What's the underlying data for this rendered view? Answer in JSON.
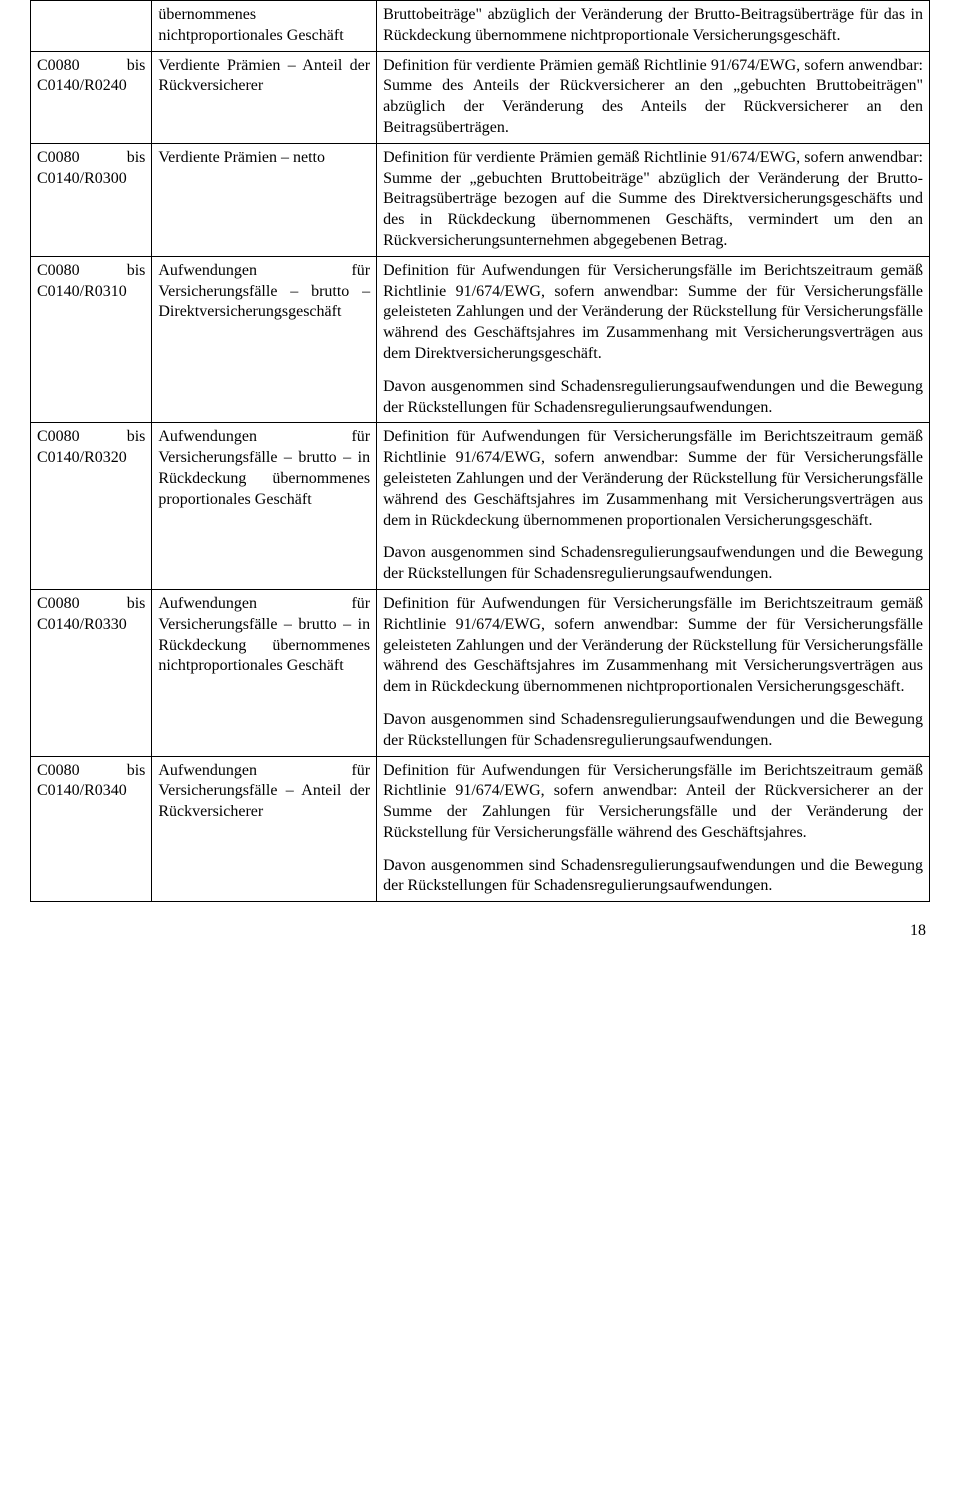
{
  "rows": [
    {
      "col1": "",
      "col2": "übernommenes nichtproportionales Geschäft",
      "col3": [
        "Bruttobeiträge\" abzüglich der Veränderung der Brutto-Beitragsüberträge für das in Rückdeckung übernommene nichtproportionale Versicherungsgeschäft."
      ]
    },
    {
      "col1": "C0080 bis C0140/R0240",
      "col2": "Verdiente Prämien – Anteil der Rückversicherer",
      "col3": [
        "Definition für verdiente Prämien gemäß Richtlinie 91/674/EWG, sofern anwendbar: Summe des Anteils der Rückversicherer an den „gebuchten Bruttobeiträgen\" abzüglich der Veränderung des Anteils der Rückversicherer an den Beitragsüberträgen."
      ]
    },
    {
      "col1": "C0080 bis C0140/R0300",
      "col2": "Verdiente Prämien – netto",
      "col3": [
        "Definition für verdiente Prämien gemäß Richtlinie 91/674/EWG, sofern anwendbar: Summe der „gebuchten Bruttobeiträge\" abzüglich der Veränderung der Brutto-Beitragsüberträge bezogen auf die Summe des Direktversicherungsgeschäfts und des in Rückdeckung übernommenen Geschäfts, vermindert um den an Rückversicherungsunternehmen abgegebenen Betrag."
      ]
    },
    {
      "col1": "C0080 bis C0140/R0310",
      "col2": "Aufwendungen für Versicherungsfälle – brutto – Direktversicherungsgeschäft",
      "col3": [
        "Definition für Aufwendungen für Versicherungsfälle im Berichtszeitraum gemäß Richtlinie 91/674/EWG, sofern anwendbar: Summe der für Versicherungsfälle geleisteten Zahlungen und der Veränderung der Rückstellung für Versicherungsfälle während des Geschäftsjahres im Zusammenhang mit Versicherungsverträgen aus dem Direktversicherungsgeschäft.",
        "Davon ausgenommen sind Schadensregulierungsaufwendungen und die Bewegung der Rückstellungen für Schadensregulierungsaufwendungen."
      ]
    },
    {
      "col1": "C0080 bis C0140/R0320",
      "col2": "Aufwendungen für Versicherungsfälle – brutto – in Rückdeckung übernommenes proportionales Geschäft",
      "col3": [
        "Definition für Aufwendungen für Versicherungsfälle im Berichtszeitraum gemäß Richtlinie 91/674/EWG, sofern anwendbar: Summe der für Versicherungsfälle geleisteten Zahlungen und der Veränderung der Rückstellung für Versicherungsfälle während des Geschäftsjahres im Zusammenhang mit Versicherungsverträgen aus dem in Rückdeckung übernommenen proportionalen Versicherungsgeschäft.",
        "Davon ausgenommen sind Schadensregulierungsaufwendungen und die Bewegung der Rückstellungen für Schadensregulierungsaufwendungen."
      ]
    },
    {
      "col1": "C0080 bis C0140/R0330",
      "col2": "Aufwendungen für Versicherungsfälle – brutto – in Rückdeckung übernommenes nichtproportionales Geschäft",
      "col3": [
        "Definition für Aufwendungen für Versicherungsfälle im Berichtszeitraum gemäß Richtlinie 91/674/EWG, sofern anwendbar: Summe der für Versicherungsfälle geleisteten Zahlungen und der Veränderung der Rückstellung für Versicherungsfälle während des Geschäftsjahres im Zusammenhang mit Versicherungsverträgen aus dem in Rückdeckung übernommenen nichtproportionalen Versicherungsgeschäft.",
        "Davon ausgenommen sind Schadensregulierungsaufwendungen und die Bewegung der Rückstellungen für Schadensregulierungsaufwendungen."
      ]
    },
    {
      "col1": "C0080 bis C0140/R0340",
      "col2": "Aufwendungen für Versicherungsfälle – Anteil der Rückversicherer",
      "col3": [
        "Definition für Aufwendungen für Versicherungsfälle im Berichtszeitraum gemäß Richtlinie 91/674/EWG, sofern anwendbar: Anteil der Rückversicherer an der Summe der Zahlungen für Versicherungsfälle und der Veränderung der Rückstellung für Versicherungsfälle während des Geschäftsjahres.",
        "Davon ausgenommen sind Schadensregulierungsaufwendungen und die Bewegung der Rückstellungen für Schadensregulierungsaufwendungen."
      ]
    }
  ],
  "page_number": "18"
}
